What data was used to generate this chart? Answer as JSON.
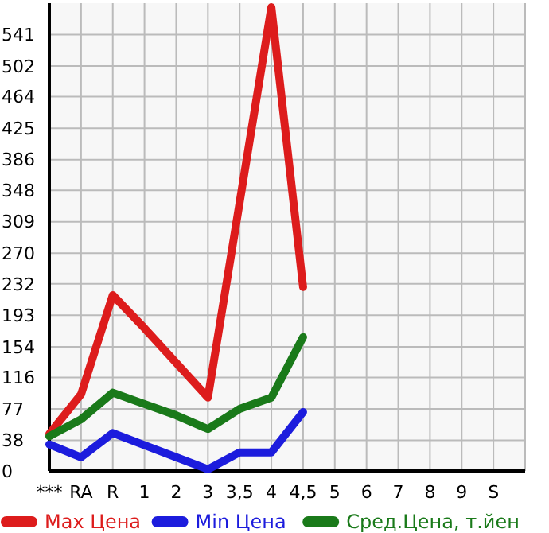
{
  "chart_data": {
    "type": "line",
    "categories": [
      "***",
      "RA",
      "R",
      "1",
      "2",
      "3",
      "3,5",
      "4",
      "4,5",
      "5",
      "6",
      "7",
      "8",
      "9",
      "S"
    ],
    "series": [
      {
        "name": "Max Цена",
        "color": "#dd1c1c",
        "values": [
          46,
          95,
          218,
          177,
          134,
          91,
          333,
          575,
          228,
          null,
          null,
          null,
          null,
          null,
          null
        ]
      },
      {
        "name": "Min Цена",
        "color": "#1c1cdd",
        "values": [
          33,
          17,
          47,
          32,
          17,
          2,
          23,
          23,
          73,
          null,
          null,
          null,
          null,
          null,
          null
        ]
      },
      {
        "name": "Сред.Цена, т.йен",
        "color": "#1a7a1a",
        "values": [
          43,
          64,
          97,
          83,
          69,
          52,
          77,
          91,
          166,
          null,
          null,
          null,
          null,
          null,
          null
        ]
      }
    ],
    "ylim": [
      0,
      580
    ],
    "yticks": [
      0,
      38,
      77,
      116,
      154,
      193,
      232,
      270,
      309,
      348,
      386,
      425,
      464,
      502,
      541
    ],
    "grid": true,
    "legend": "bottom",
    "marker": "none",
    "line_style": "solid"
  }
}
